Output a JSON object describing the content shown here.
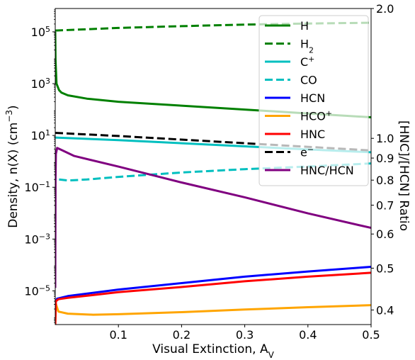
{
  "chart_data": {
    "type": "line",
    "xlabel": "Visual Extinction, A",
    "xlabel_sub": "V",
    "ylabel": "Density, n(X) (cm",
    "ylabel_sup": "−3",
    "ylabel_close": ")",
    "y2label": "[HNC]/[HCN] Ratio",
    "y2label_color": "#800080",
    "xlim": [
      0.0,
      0.5
    ],
    "ylim_log10": [
      -6.3,
      5.9
    ],
    "y2lim": [
      0.37,
      2.0
    ],
    "y2scale": "log",
    "legend_placement": "upper-right",
    "grid": false,
    "x_ticks": [
      {
        "v": 0.1,
        "label": "0.1"
      },
      {
        "v": 0.2,
        "label": "0.2"
      },
      {
        "v": 0.3,
        "label": "0.3"
      },
      {
        "v": 0.4,
        "label": "0.4"
      },
      {
        "v": 0.5,
        "label": "0.5"
      }
    ],
    "y_ticks": [
      {
        "exp": 5,
        "base": "10",
        "sup": "5"
      },
      {
        "exp": 3,
        "base": "10",
        "sup": "3"
      },
      {
        "exp": 1,
        "base": "10",
        "sup": "1"
      },
      {
        "exp": -1,
        "base": "10",
        "sup": "−1"
      },
      {
        "exp": -3,
        "base": "10",
        "sup": "−3"
      },
      {
        "exp": -5,
        "base": "10",
        "sup": "−5"
      }
    ],
    "y2_ticks": [
      {
        "v": 2.0,
        "label": "2.0"
      },
      {
        "v": 1.0,
        "label": "1.0"
      },
      {
        "v": 0.9,
        "label": "0.9"
      },
      {
        "v": 0.8,
        "label": "0.8"
      },
      {
        "v": 0.7,
        "label": "0.7"
      },
      {
        "v": 0.6,
        "label": "0.6"
      },
      {
        "v": 0.5,
        "label": "0.5"
      },
      {
        "v": 0.4,
        "label": "0.4"
      }
    ],
    "series": [
      {
        "key": "h",
        "label": "H",
        "sup": "",
        "sub": "",
        "color": "#008000",
        "dash": false,
        "axis": "left",
        "points": [
          [
            0.0,
            5.0
          ],
          [
            0.0005,
            3.9
          ],
          [
            0.002,
            3.0
          ],
          [
            0.006,
            2.75
          ],
          [
            0.01,
            2.65
          ],
          [
            0.02,
            2.55
          ],
          [
            0.05,
            2.42
          ],
          [
            0.1,
            2.3
          ],
          [
            0.2,
            2.15
          ],
          [
            0.3,
            2.0
          ],
          [
            0.4,
            1.85
          ],
          [
            0.5,
            1.7
          ]
        ]
      },
      {
        "key": "h2",
        "label": "H",
        "sup": "",
        "sub": "2",
        "color": "#008000",
        "dash": true,
        "axis": "left",
        "points": [
          [
            0.0,
            5.05
          ],
          [
            0.1,
            5.15
          ],
          [
            0.2,
            5.22
          ],
          [
            0.3,
            5.28
          ],
          [
            0.4,
            5.32
          ],
          [
            0.5,
            5.35
          ]
        ]
      },
      {
        "key": "cplus",
        "label": "C",
        "sup": "+",
        "sub": "",
        "color": "#00bfbf",
        "dash": false,
        "axis": "left",
        "points": [
          [
            0.0,
            0.92
          ],
          [
            0.1,
            0.82
          ],
          [
            0.2,
            0.7
          ],
          [
            0.3,
            0.58
          ],
          [
            0.4,
            0.46
          ],
          [
            0.5,
            0.35
          ]
        ]
      },
      {
        "key": "co",
        "label": "CO",
        "sup": "",
        "sub": "",
        "color": "#00bfbf",
        "dash": true,
        "axis": "left",
        "points": [
          [
            0.006,
            -0.7
          ],
          [
            0.02,
            -0.74
          ],
          [
            0.05,
            -0.7
          ],
          [
            0.1,
            -0.6
          ],
          [
            0.2,
            -0.43
          ],
          [
            0.3,
            -0.3
          ],
          [
            0.4,
            -0.2
          ],
          [
            0.5,
            -0.08
          ]
        ]
      },
      {
        "key": "hcn",
        "label": "HCN",
        "sup": "",
        "sub": "",
        "color": "#0000ff",
        "dash": false,
        "axis": "left",
        "points": [
          [
            0.0,
            -5.45
          ],
          [
            0.003,
            -5.3
          ],
          [
            0.02,
            -5.2
          ],
          [
            0.1,
            -4.95
          ],
          [
            0.2,
            -4.7
          ],
          [
            0.3,
            -4.45
          ],
          [
            0.4,
            -4.25
          ],
          [
            0.5,
            -4.07
          ]
        ]
      },
      {
        "key": "hcoplus",
        "label": "HCO",
        "sup": "+",
        "sub": "",
        "color": "#ffa500",
        "dash": false,
        "axis": "left",
        "points": [
          [
            0.0,
            -6.3
          ],
          [
            0.001,
            -5.5
          ],
          [
            0.005,
            -5.8
          ],
          [
            0.02,
            -5.88
          ],
          [
            0.06,
            -5.92
          ],
          [
            0.1,
            -5.9
          ],
          [
            0.2,
            -5.82
          ],
          [
            0.3,
            -5.72
          ],
          [
            0.4,
            -5.63
          ],
          [
            0.5,
            -5.55
          ]
        ]
      },
      {
        "key": "hnc",
        "label": "HNC",
        "sup": "",
        "sub": "",
        "color": "#ff0000",
        "dash": false,
        "axis": "left",
        "points": [
          [
            0.0,
            -6.3
          ],
          [
            0.001,
            -5.4
          ],
          [
            0.005,
            -5.32
          ],
          [
            0.02,
            -5.27
          ],
          [
            0.1,
            -5.05
          ],
          [
            0.2,
            -4.85
          ],
          [
            0.3,
            -4.63
          ],
          [
            0.4,
            -4.45
          ],
          [
            0.5,
            -4.3
          ]
        ]
      },
      {
        "key": "eminus",
        "label": "e",
        "sup": "−",
        "sub": "",
        "color": "#000000",
        "dash": true,
        "axis": "left",
        "points": [
          [
            0.0,
            1.1
          ],
          [
            0.1,
            0.98
          ],
          [
            0.2,
            0.84
          ],
          [
            0.3,
            0.7
          ],
          [
            0.4,
            0.56
          ],
          [
            0.5,
            0.42
          ]
        ]
      },
      {
        "key": "ratio",
        "label": "HNC/HCN",
        "sup": "",
        "sub": "",
        "color": "#800080",
        "dash": false,
        "axis": "right",
        "points": [
          [
            0.0,
            0.45
          ],
          [
            0.0005,
            0.8
          ],
          [
            0.001,
            0.92
          ],
          [
            0.003,
            0.95
          ],
          [
            0.01,
            0.94
          ],
          [
            0.03,
            0.91
          ],
          [
            0.1,
            0.86
          ],
          [
            0.2,
            0.79
          ],
          [
            0.3,
            0.73
          ],
          [
            0.4,
            0.67
          ],
          [
            0.5,
            0.62
          ]
        ]
      }
    ]
  }
}
